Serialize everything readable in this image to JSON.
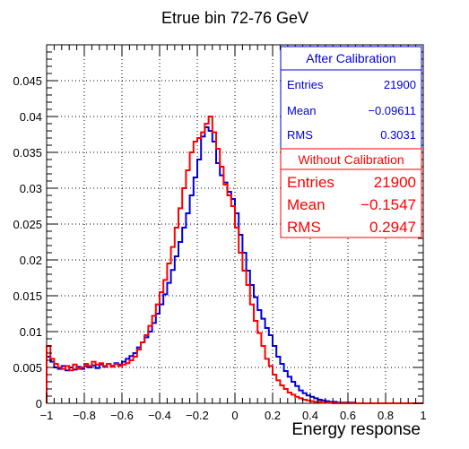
{
  "chart_data": {
    "type": "histogram",
    "title": "Etrue bin 72-76 GeV",
    "xlabel": "Energy response",
    "ylabel": "",
    "xlim": [
      -1,
      1
    ],
    "ylim": [
      0,
      0.05
    ],
    "grid": true,
    "bin_width": 0.02,
    "x_ticks": [
      -1,
      -0.8,
      -0.6,
      -0.4,
      -0.2,
      0,
      0.2,
      0.4,
      0.6,
      0.8,
      1
    ],
    "x_tick_labels": [
      "−1",
      "−0.8",
      "−0.6",
      "−0.4",
      "−0.2",
      "0",
      "0.2",
      "0.4",
      "0.6",
      "0.8",
      "1"
    ],
    "y_ticks": [
      0,
      0.005,
      0.01,
      0.015,
      0.02,
      0.025,
      0.03,
      0.035,
      0.04,
      0.045
    ],
    "y_tick_labels": [
      "0",
      "0.005",
      "0.01",
      "0.015",
      "0.02",
      "0.025",
      "0.03",
      "0.035",
      "0.04",
      "0.045"
    ],
    "series": [
      {
        "name": "After Calibration",
        "color": "#0000dd",
        "bin_start": -1.0,
        "values": [
          0.0065,
          0.0058,
          0.005,
          0.0048,
          0.0052,
          0.0046,
          0.005,
          0.0047,
          0.0051,
          0.0048,
          0.0052,
          0.005,
          0.0053,
          0.0049,
          0.0054,
          0.0051,
          0.0055,
          0.0052,
          0.0056,
          0.0054,
          0.0058,
          0.0062,
          0.0066,
          0.007,
          0.0078,
          0.0085,
          0.0092,
          0.01,
          0.0112,
          0.0125,
          0.0138,
          0.0152,
          0.0168,
          0.0186,
          0.0205,
          0.0225,
          0.0245,
          0.0265,
          0.029,
          0.0315,
          0.034,
          0.0372,
          0.0385,
          0.038,
          0.0365,
          0.0335,
          0.0318,
          0.0308,
          0.0295,
          0.0285,
          0.0265,
          0.0235,
          0.021,
          0.0185,
          0.0165,
          0.0148,
          0.013,
          0.0118,
          0.0105,
          0.0095,
          0.008,
          0.0065,
          0.0055,
          0.0045,
          0.0037,
          0.003,
          0.0024,
          0.0018,
          0.0014,
          0.0011,
          0.0009,
          0.0007,
          0.0005,
          0.0004,
          0.0003,
          0.0002,
          0.0002,
          0.0001,
          0.0001,
          0.0001,
          0.0001,
          0.0001,
          0,
          0,
          0,
          0,
          0,
          0,
          0,
          0,
          0,
          0,
          0,
          0,
          0,
          0,
          0,
          0,
          0,
          0
        ]
      },
      {
        "name": "Without Calibration",
        "color": "#ff0000",
        "bin_start": -1.0,
        "values": [
          0.008,
          0.0062,
          0.0055,
          0.005,
          0.0048,
          0.0052,
          0.0046,
          0.0054,
          0.0048,
          0.005,
          0.0055,
          0.0052,
          0.0058,
          0.0054,
          0.0056,
          0.0052,
          0.0055,
          0.0051,
          0.0055,
          0.0052,
          0.0054,
          0.0056,
          0.006,
          0.0065,
          0.0075,
          0.0085,
          0.0095,
          0.0108,
          0.0122,
          0.0138,
          0.0155,
          0.0172,
          0.0195,
          0.0218,
          0.0245,
          0.0272,
          0.03,
          0.0325,
          0.035,
          0.0365,
          0.037,
          0.0378,
          0.039,
          0.04,
          0.0378,
          0.0355,
          0.033,
          0.0305,
          0.029,
          0.0275,
          0.0245,
          0.021,
          0.0185,
          0.0165,
          0.0138,
          0.0115,
          0.0098,
          0.008,
          0.0062,
          0.0052,
          0.004,
          0.0032,
          0.0025,
          0.002,
          0.0015,
          0.0012,
          0.0009,
          0.0007,
          0.0005,
          0.0004,
          0.0003,
          0.0002,
          0.0002,
          0.0001,
          0.0001,
          0.0001,
          0,
          0,
          0,
          0,
          0,
          0,
          0,
          0,
          0,
          0,
          0,
          0,
          0,
          0,
          0,
          0,
          0,
          0,
          0,
          0,
          0,
          0,
          0,
          0
        ]
      }
    ]
  },
  "stats_after": {
    "title": "After Calibration",
    "entries_label": "Entries",
    "entries_value": "21900",
    "mean_label": "Mean",
    "mean_value": "−0.09611",
    "rms_label": "RMS",
    "rms_value": "0.3031",
    "color": "#0000dd"
  },
  "stats_without": {
    "title": "Without Calibration",
    "entries_label": "Entries",
    "entries_value": "21900",
    "mean_label": "Mean",
    "mean_value": "−0.1547",
    "rms_label": "RMS",
    "rms_value": "0.2947",
    "color": "#ff0000"
  }
}
